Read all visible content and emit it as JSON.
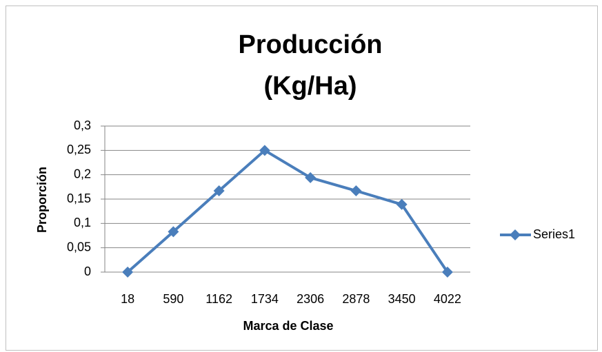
{
  "chart_data": {
    "type": "line",
    "title": [
      "Producción",
      "(Kg/Ha)"
    ],
    "x_label": "Marca de Clase",
    "y_label": "Proporción",
    "categories": [
      "18",
      "590",
      "1162",
      "1734",
      "2306",
      "2878",
      "3450",
      "4022"
    ],
    "series": [
      {
        "name": "Series1",
        "color": "#4a7ebb",
        "values": [
          0,
          0.083,
          0.167,
          0.25,
          0.194,
          0.167,
          0.139,
          0
        ]
      }
    ],
    "ylim": [
      0,
      0.3
    ],
    "yticks": [
      0,
      {
        "value": 0.05,
        "label": "0,05"
      },
      {
        "value": 0.1,
        "label": "0,1"
      },
      {
        "value": 0.15,
        "label": "0,15"
      },
      {
        "value": 0.2,
        "label": "0,2"
      },
      {
        "value": 0.25,
        "label": "0,25"
      },
      {
        "value": 0.3,
        "label": "0,3"
      }
    ],
    "grid": true,
    "legend": "right"
  }
}
